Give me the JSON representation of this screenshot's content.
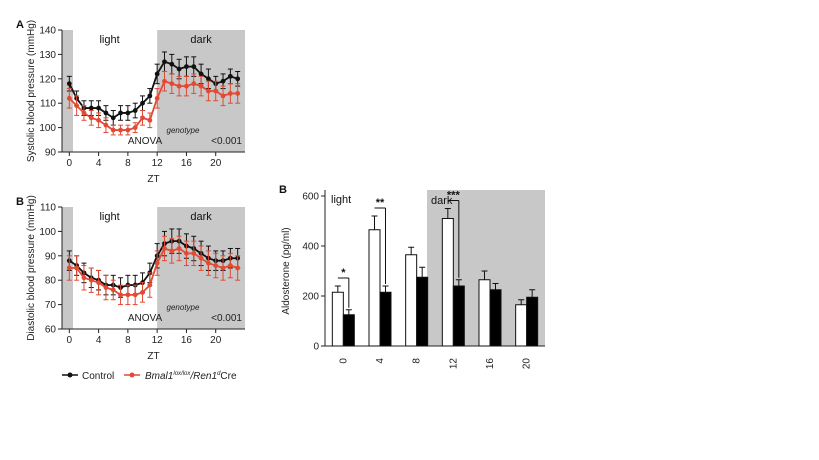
{
  "chart_data": [
    {
      "id": "A",
      "type": "line",
      "panel_label": "A",
      "ylabel": "Systolic blood pressure (mmHg)",
      "xlabel": "ZT",
      "ylim": [
        90,
        140
      ],
      "yticks": [
        90,
        100,
        110,
        120,
        130,
        140
      ],
      "xlim": [
        -1,
        24
      ],
      "xticks": [
        0,
        4,
        8,
        12,
        16,
        20
      ],
      "shaded_ranges": [
        [
          -1,
          0.5
        ],
        [
          12,
          24
        ]
      ],
      "region_labels": [
        "light",
        "dark"
      ],
      "annotation": {
        "anova": "ANOVA",
        "factor": "genotype",
        "p": "<0.001"
      },
      "x": [
        0,
        1,
        2,
        3,
        4,
        5,
        6,
        7,
        8,
        9,
        10,
        11,
        12,
        13,
        14,
        15,
        16,
        17,
        18,
        19,
        20,
        21,
        22,
        23
      ],
      "series": [
        {
          "name": "Control",
          "color": "#111111",
          "values": [
            118,
            112,
            108,
            108,
            108,
            106,
            104,
            106,
            106,
            107,
            110,
            113,
            122,
            127,
            126,
            124,
            125,
            125,
            122,
            120,
            118,
            119,
            121,
            120
          ],
          "err": [
            3,
            3,
            3,
            3,
            3,
            3,
            3,
            3,
            3,
            3,
            3,
            3,
            4,
            4,
            4,
            4,
            4,
            4,
            4,
            4,
            3,
            3,
            3,
            3
          ]
        },
        {
          "name": "Bmal1",
          "color": "#e24a33",
          "values": [
            112,
            109,
            106,
            104,
            103,
            101,
            99,
            99,
            99,
            100,
            104,
            103,
            112,
            119,
            118,
            117,
            117,
            118,
            117,
            115,
            115,
            113,
            114,
            114
          ],
          "err": [
            4,
            4,
            3,
            3,
            3,
            3,
            2,
            2,
            2,
            2,
            3,
            3,
            4,
            4,
            4,
            4,
            4,
            4,
            4,
            4,
            4,
            4,
            4,
            4
          ]
        }
      ]
    },
    {
      "id": "B",
      "type": "line",
      "panel_label": "B",
      "ylabel": "Diastolic blood pressure (mmHg)",
      "xlabel": "ZT",
      "ylim": [
        60,
        110
      ],
      "yticks": [
        60,
        70,
        80,
        90,
        100,
        110
      ],
      "xlim": [
        -1,
        24
      ],
      "xticks": [
        0,
        4,
        8,
        12,
        16,
        20
      ],
      "shaded_ranges": [
        [
          -1,
          0.5
        ],
        [
          12,
          24
        ]
      ],
      "region_labels": [
        "light",
        "dark"
      ],
      "annotation": {
        "anova": "ANOVA",
        "factor": "genotype",
        "p": "<0.001"
      },
      "x": [
        0,
        1,
        2,
        3,
        4,
        5,
        6,
        7,
        8,
        9,
        10,
        11,
        12,
        13,
        14,
        15,
        16,
        17,
        18,
        19,
        20,
        21,
        22,
        23
      ],
      "series": [
        {
          "name": "Control",
          "color": "#111111",
          "values": [
            88,
            86,
            83,
            81,
            80,
            78,
            78,
            77,
            78,
            78,
            79,
            83,
            90,
            95,
            96,
            96,
            94,
            93,
            91,
            89,
            88,
            88,
            89,
            89
          ],
          "err": [
            4,
            4,
            4,
            4,
            4,
            4,
            4,
            4,
            4,
            4,
            4,
            4,
            5,
            5,
            5,
            5,
            5,
            5,
            5,
            5,
            4,
            4,
            4,
            4
          ]
        },
        {
          "name": "Bmal1",
          "color": "#e24a33",
          "values": [
            85,
            85,
            81,
            80,
            79,
            77,
            76,
            74,
            74,
            74,
            75,
            78,
            87,
            93,
            92,
            93,
            91,
            91,
            89,
            87,
            86,
            85,
            86,
            85
          ],
          "err": [
            5,
            5,
            5,
            5,
            5,
            5,
            4,
            4,
            4,
            4,
            4,
            5,
            5,
            5,
            5,
            5,
            5,
            5,
            5,
            5,
            5,
            5,
            5,
            5
          ]
        }
      ]
    },
    {
      "id": "C",
      "type": "bar",
      "panel_label": "B",
      "ylabel": "Aldosterone (pg/ml)",
      "ylim": [
        0,
        600
      ],
      "yticks": [
        0,
        200,
        400,
        600
      ],
      "categories": [
        "0",
        "4",
        "8",
        "12",
        "16",
        "20"
      ],
      "region_labels": [
        "light",
        "dark"
      ],
      "dark_from_category": 3,
      "series": [
        {
          "name": "Control",
          "fill": "#ffffff",
          "values": [
            215,
            465,
            365,
            510,
            265,
            165
          ],
          "err": [
            25,
            55,
            30,
            40,
            35,
            20
          ]
        },
        {
          "name": "Bmal1",
          "fill": "#000000",
          "values": [
            125,
            215,
            275,
            240,
            225,
            195
          ],
          "err": [
            20,
            25,
            40,
            25,
            25,
            30
          ]
        }
      ],
      "significance": [
        {
          "category": "0",
          "label": "*"
        },
        {
          "category": "4",
          "label": "**"
        },
        {
          "category": "12",
          "label": "***"
        }
      ]
    }
  ],
  "legend": {
    "control": "Control",
    "bmal_base": "Bmal1",
    "bmal_sup": "lox/lox",
    "bmal_mid": "/Ren1",
    "bmal_sup2": "d",
    "bmal_end": "Cre"
  }
}
